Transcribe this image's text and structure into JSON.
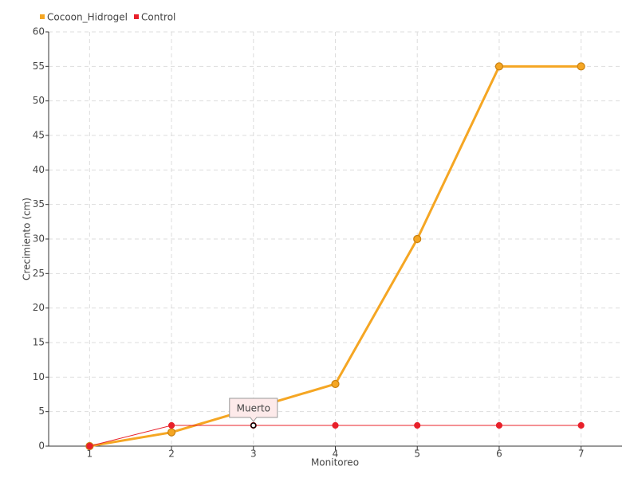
{
  "chart_data": {
    "type": "line",
    "x_label": "Monitoreo",
    "y_label": "Crecimiento (cm)",
    "categories": [
      "1",
      "2",
      "3",
      "4",
      "5",
      "6",
      "7"
    ],
    "series": [
      {
        "name": "Cocoon_Hidrogel",
        "color": "#f5a623",
        "values": [
          0,
          2,
          5.5,
          9,
          30,
          55,
          55
        ]
      },
      {
        "name": "Control",
        "color": "#e8202a",
        "values": [
          0,
          3,
          3,
          3,
          3,
          3,
          3
        ]
      }
    ],
    "annotations": [
      {
        "text": "Muerto"
      }
    ],
    "ylim": [
      0,
      60
    ],
    "yticks": [
      0,
      5,
      10,
      15,
      20,
      25,
      30,
      35,
      40,
      45,
      50,
      55,
      60
    ],
    "grid": true,
    "legend": "top-left"
  }
}
